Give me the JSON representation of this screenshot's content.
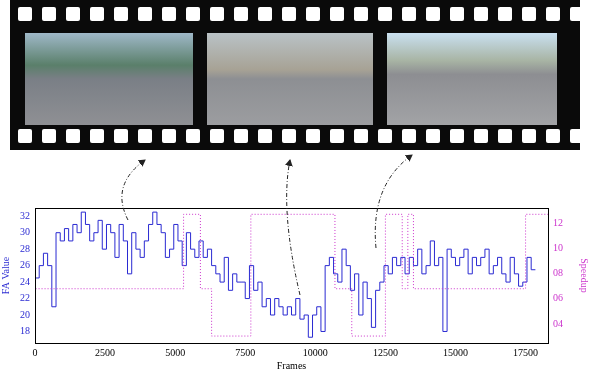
{
  "chart_data": {
    "type": "line",
    "x_label": "Frames",
    "y_label": "FA Value",
    "y2_label": "Speedup",
    "xlim": [
      0,
      18300
    ],
    "xticks": [
      0,
      2500,
      5000,
      7500,
      10000,
      12500,
      15000,
      17500
    ],
    "ylim": [
      16.6,
      33
    ],
    "yticks": [
      18,
      20,
      22,
      24,
      26,
      28,
      30,
      32
    ],
    "y2lim": [
      2.5,
      13.2
    ],
    "y2ticks": [
      {
        "value": 4,
        "label": "04"
      },
      {
        "value": 6,
        "label": "06"
      },
      {
        "value": 8,
        "label": "08"
      },
      {
        "value": 10,
        "label": "10"
      },
      {
        "value": 12,
        "label": "12"
      }
    ],
    "grid": false,
    "series": [
      {
        "type": "step",
        "color": "#2a2ad2",
        "line_style": "solid",
        "axis": "y",
        "x": [
          0,
          150,
          300,
          450,
          600,
          750,
          900,
          1050,
          1200,
          1350,
          1500,
          1650,
          1800,
          1950,
          2100,
          2250,
          2400,
          2550,
          2700,
          2850,
          3000,
          3150,
          3300,
          3450,
          3600,
          3750,
          3900,
          4050,
          4200,
          4350,
          4500,
          4650,
          4800,
          4950,
          5100,
          5250,
          5400,
          5550,
          5700,
          5850,
          6000,
          6150,
          6300,
          6450,
          6600,
          6750,
          6900,
          7050,
          7200,
          7350,
          7500,
          7650,
          7800,
          7950,
          8100,
          8250,
          8400,
          8550,
          8700,
          8850,
          9000,
          9150,
          9300,
          9450,
          9600,
          9750,
          9900,
          10050,
          10200,
          10350,
          10500,
          10650,
          10800,
          10950,
          11100,
          11250,
          11400,
          11550,
          11700,
          11850,
          12000,
          12150,
          12300,
          12450,
          12600,
          12750,
          12900,
          13050,
          13200,
          13350,
          13500,
          13650,
          13800,
          13950,
          14100,
          14250,
          14400,
          14550,
          14700,
          14850,
          15000,
          15150,
          15300,
          15450,
          15600,
          15750,
          15900,
          16050,
          16200,
          16350,
          16500,
          16650,
          16800,
          16950,
          17100,
          17250,
          17400,
          17550,
          17700,
          17850
        ],
        "values": [
          25,
          24.5,
          26,
          27.5,
          26,
          21,
          30,
          29,
          30.5,
          29,
          31,
          30,
          32.5,
          31,
          29,
          30,
          31.5,
          28,
          31,
          30,
          27,
          31,
          29,
          25,
          30,
          28,
          27,
          29,
          31,
          32.5,
          31,
          30,
          27,
          28,
          31,
          29,
          26,
          30,
          28,
          27,
          29,
          27,
          28,
          26,
          25,
          24,
          27,
          23,
          25,
          24,
          24,
          22,
          26,
          23,
          24,
          21,
          22,
          20,
          22,
          21,
          20,
          21,
          20,
          22,
          19.5,
          20,
          17.3,
          20,
          21,
          18,
          26,
          27,
          25,
          24,
          28,
          26,
          23,
          25,
          20,
          24,
          22,
          18.5,
          23,
          24,
          26,
          25,
          27,
          26,
          27,
          25,
          27,
          26,
          28,
          25,
          26,
          29,
          26,
          27,
          18,
          28,
          27,
          26,
          27,
          28,
          25,
          27,
          26,
          27,
          28,
          25,
          26,
          27,
          25,
          24,
          27,
          25,
          23.5,
          24,
          27,
          25.5
        ]
      },
      {
        "type": "step",
        "color": "#cc33cc",
        "line_style": "dotted",
        "axis": "y2",
        "x": [
          0,
          5300,
          5900,
          6300,
          7700,
          10700,
          11300,
          12500,
          13100,
          13300,
          13500,
          17500,
          17900,
          18300
        ],
        "values": [
          12.7,
          6.8,
          12.7,
          6.8,
          3.05,
          12.7,
          6.8,
          3.05,
          12.7,
          6.8,
          12.7,
          6.8,
          12.7,
          12.7
        ]
      }
    ]
  }
}
